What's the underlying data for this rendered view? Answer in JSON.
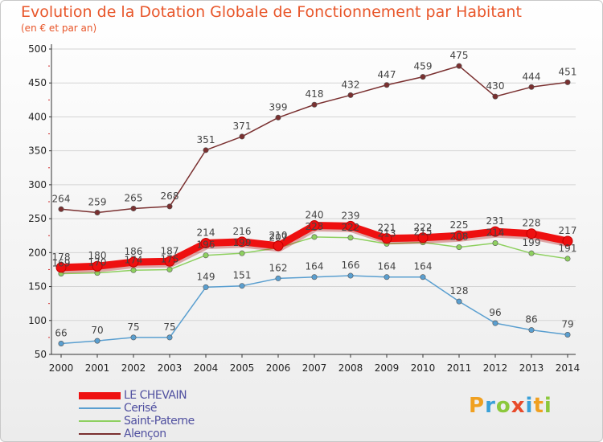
{
  "header": {
    "title": "Evolution de la Dotation Globale de Fonctionnement par Habitant",
    "subtitle": "(en € et par an)"
  },
  "brand": {
    "logo_letters": [
      "P",
      "r",
      "o",
      "x",
      "i",
      "t",
      "i"
    ],
    "logo_colors": [
      "#f0a020",
      "#3aa0d8",
      "#8cc83c",
      "#e84a2a",
      "#3aa0d8",
      "#f0a020",
      "#8cc83c"
    ]
  },
  "chart_data": {
    "type": "line",
    "title": "Evolution de la Dotation Globale de Fonctionnement par Habitant",
    "subtitle": "(en € et par an)",
    "xlabel": "",
    "ylabel": "",
    "x": [
      "2000",
      "2001",
      "2002",
      "2003",
      "2004",
      "2005",
      "2006",
      "2007",
      "2008",
      "2009",
      "2010",
      "2011",
      "2012",
      "2013",
      "2014"
    ],
    "ylim": [
      50,
      500
    ],
    "yticks": [
      50,
      100,
      150,
      200,
      250,
      300,
      350,
      400,
      450,
      500
    ],
    "grid": "horizontal",
    "legend_position": "bottom-left",
    "series": [
      {
        "name": "LE CHEVAIN",
        "color": "#ee1010",
        "values": [
          178,
          180,
          186,
          187,
          214,
          216,
          210,
          240,
          239,
          221,
          222,
          225,
          231,
          228,
          217
        ]
      },
      {
        "name": "Cerisé",
        "color": "#5a9fd0",
        "values": [
          66,
          70,
          75,
          75,
          149,
          151,
          162,
          164,
          166,
          164,
          164,
          128,
          96,
          86,
          79
        ]
      },
      {
        "name": "Saint-Paterne",
        "color": "#8ed060",
        "values": [
          169,
          170,
          174,
          175,
          196,
          199,
          207,
          223,
          222,
          213,
          215,
          208,
          214,
          199,
          191
        ]
      },
      {
        "name": "Alençon",
        "color": "#7a3030",
        "values": [
          264,
          259,
          265,
          268,
          351,
          371,
          399,
          418,
          432,
          447,
          459,
          475,
          430,
          444,
          451
        ]
      }
    ]
  }
}
